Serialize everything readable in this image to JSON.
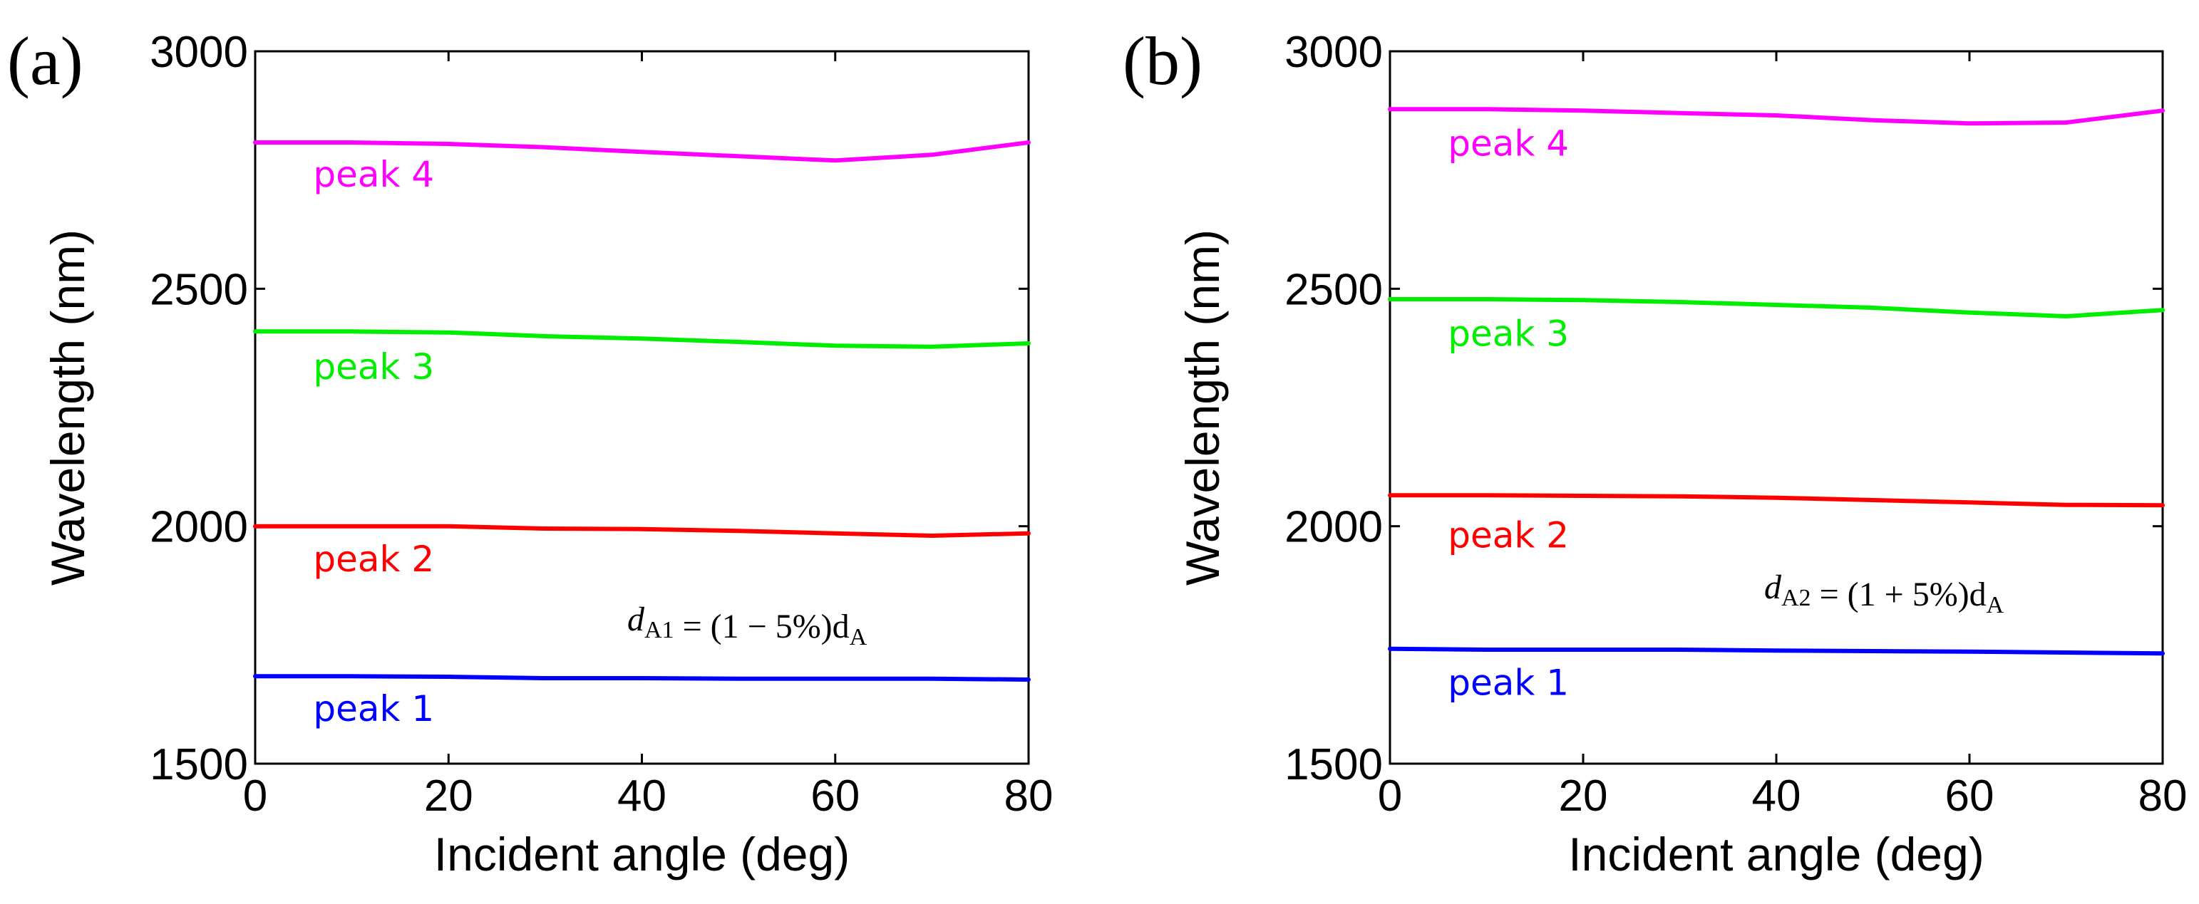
{
  "chart_data": [
    {
      "type": "line",
      "panel_label": "(a)",
      "xlabel": "Incident angle (deg)",
      "ylabel": "Wavelength (nm)",
      "xlim": [
        0,
        80
      ],
      "ylim": [
        1500,
        3000
      ],
      "x_ticks": [
        0,
        20,
        40,
        60,
        80
      ],
      "y_ticks": [
        1500,
        2000,
        2500,
        3000
      ],
      "x_tick_labels": [
        "0",
        "20",
        "40",
        "60",
        "80"
      ],
      "y_tick_labels": [
        "1500",
        "2000",
        "2500",
        "3000"
      ],
      "grid": false,
      "annotation": {
        "main": "d",
        "sub": "A1",
        "rest": " = (1 − 5%)d",
        "sub2": "A"
      },
      "series": [
        {
          "name": "peak 1",
          "color": "#0000ff",
          "label_at": [
            6,
            1590
          ],
          "x": [
            0,
            10,
            20,
            30,
            40,
            50,
            60,
            70,
            80
          ],
          "values": [
            1684,
            1684,
            1683,
            1680,
            1680,
            1679,
            1679,
            1679,
            1677
          ]
        },
        {
          "name": "peak 2",
          "color": "#ff0000",
          "label_at": [
            6,
            1905
          ],
          "x": [
            0,
            10,
            20,
            30,
            40,
            50,
            60,
            70,
            80
          ],
          "values": [
            2000,
            2000,
            2000,
            1995,
            1994,
            1990,
            1985,
            1980,
            1985
          ]
        },
        {
          "name": "peak 3",
          "color": "#00ee00",
          "label_at": [
            6,
            2310
          ],
          "x": [
            0,
            10,
            20,
            30,
            40,
            50,
            60,
            70,
            80
          ],
          "values": [
            2410,
            2410,
            2408,
            2400,
            2395,
            2388,
            2380,
            2378,
            2385
          ]
        },
        {
          "name": "peak 4",
          "color": "#ff00ff",
          "label_at": [
            6,
            2715
          ],
          "x": [
            0,
            10,
            20,
            30,
            40,
            50,
            60,
            70,
            80
          ],
          "values": [
            2808,
            2808,
            2805,
            2798,
            2788,
            2779,
            2770,
            2782,
            2808
          ]
        }
      ]
    },
    {
      "type": "line",
      "panel_label": "(b)",
      "xlabel": "Incident angle (deg)",
      "ylabel": "Wavelength (nm)",
      "xlim": [
        0,
        80
      ],
      "ylim": [
        1500,
        3000
      ],
      "x_ticks": [
        0,
        20,
        40,
        60,
        80
      ],
      "y_ticks": [
        1500,
        2000,
        2500,
        3000
      ],
      "x_tick_labels": [
        "0",
        "20",
        "40",
        "60",
        "80"
      ],
      "y_tick_labels": [
        "1500",
        "2000",
        "2500",
        "3000"
      ],
      "grid": false,
      "annotation": {
        "main": "d",
        "sub": "A2",
        "rest": " = (1 + 5%)d",
        "sub2": "A"
      },
      "series": [
        {
          "name": "peak 1",
          "color": "#0000ff",
          "label_at": [
            6,
            1645
          ],
          "x": [
            0,
            10,
            20,
            30,
            40,
            50,
            60,
            70,
            80
          ],
          "values": [
            1742,
            1740,
            1740,
            1740,
            1738,
            1737,
            1736,
            1734,
            1732
          ]
        },
        {
          "name": "peak 2",
          "color": "#ff0000",
          "label_at": [
            6,
            1955
          ],
          "x": [
            0,
            10,
            20,
            30,
            40,
            50,
            60,
            70,
            80
          ],
          "values": [
            2065,
            2065,
            2064,
            2063,
            2060,
            2055,
            2050,
            2045,
            2044
          ]
        },
        {
          "name": "peak 3",
          "color": "#00ee00",
          "label_at": [
            6,
            2380
          ],
          "x": [
            0,
            10,
            20,
            30,
            40,
            50,
            60,
            70,
            80
          ],
          "values": [
            2478,
            2478,
            2476,
            2472,
            2466,
            2460,
            2450,
            2442,
            2455
          ]
        },
        {
          "name": "peak 4",
          "color": "#ff00ff",
          "label_at": [
            6,
            2780
          ],
          "x": [
            0,
            10,
            20,
            30,
            40,
            50,
            60,
            70,
            80
          ],
          "values": [
            2878,
            2878,
            2875,
            2870,
            2865,
            2855,
            2848,
            2850,
            2875
          ]
        }
      ]
    }
  ]
}
